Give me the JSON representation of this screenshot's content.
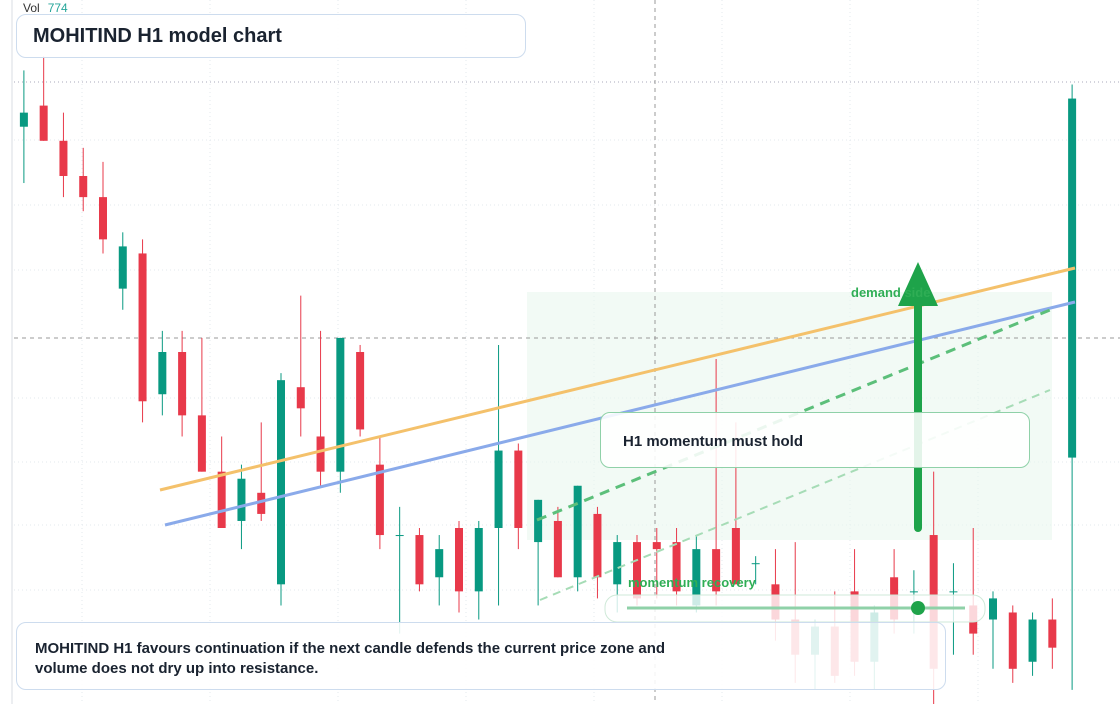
{
  "chart_data": {
    "type": "candlestick",
    "title": "MOHITIND H1 model chart",
    "volume_label": "Vol",
    "volume_value": 774,
    "up_color": "#089981",
    "down_color": "#e8394a",
    "ylim": [
      0,
      100
    ],
    "open": [
      82,
      85,
      80,
      75,
      72,
      59,
      64,
      44,
      50,
      41,
      33,
      26,
      30,
      17,
      45,
      38,
      33,
      50,
      34,
      24,
      24,
      18,
      25,
      16,
      25,
      36,
      23,
      26,
      18,
      27,
      17,
      23,
      23,
      23,
      14,
      22,
      25,
      20,
      17,
      12,
      7,
      11,
      16,
      6,
      18,
      16,
      24,
      16,
      14,
      12,
      13,
      6,
      12,
      35
    ],
    "high": [
      90,
      92,
      84,
      79,
      77,
      67,
      66,
      53,
      53,
      52,
      38,
      34,
      40,
      47,
      58,
      53,
      52,
      51,
      38,
      28,
      25,
      24,
      26,
      26,
      51,
      37,
      29,
      28,
      31,
      28,
      24,
      24,
      25,
      25,
      24,
      49,
      40,
      21,
      22,
      23,
      12,
      16,
      22,
      14,
      22,
      19,
      33,
      20,
      25,
      16,
      14,
      13,
      15,
      88
    ],
    "low": [
      74,
      80,
      72,
      70,
      64,
      56,
      40,
      41,
      38,
      33,
      25,
      22,
      26,
      14,
      38,
      31,
      30,
      38,
      22,
      10,
      16,
      14,
      13,
      12,
      14,
      22,
      14,
      18,
      16,
      15,
      13,
      14,
      15,
      14,
      13,
      14,
      17,
      17,
      9,
      3,
      2,
      3,
      4,
      2,
      10,
      10,
      0,
      7,
      7,
      5,
      3,
      4,
      5,
      2
    ],
    "close": [
      84,
      80,
      75,
      72,
      66,
      65,
      43,
      50,
      41,
      33,
      25,
      32,
      27,
      46,
      42,
      33,
      52,
      39,
      24,
      24,
      17,
      22,
      16,
      25,
      36,
      25,
      29,
      18,
      31,
      18,
      23,
      15,
      22,
      16,
      22,
      16,
      17,
      20,
      12,
      7,
      11,
      4,
      6,
      13,
      12,
      16,
      5,
      16,
      10,
      15,
      5,
      12,
      8,
      86
    ],
    "annotations": [
      "demand side",
      "H1 momentum must hold",
      "momentum recovery"
    ],
    "note": "MOHITIND H1 favours continuation if the next candle defends the current price zone and volume does not dry up into resistance."
  }
}
